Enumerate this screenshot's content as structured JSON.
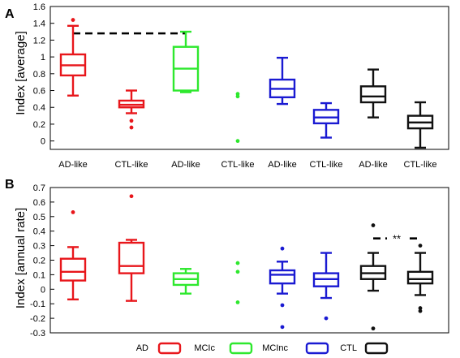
{
  "colors": {
    "AD": "#e8161b",
    "MCIc": "#2ee82e",
    "MCInc": "#1a1ad2",
    "CTL": "#111111"
  },
  "legend": {
    "items": [
      {
        "label": "AD",
        "group": "AD"
      },
      {
        "label": "MCIc",
        "group": "MCIc"
      },
      {
        "label": "MCInc",
        "group": "MCInc"
      },
      {
        "label": "CTL",
        "group": "CTL"
      }
    ]
  },
  "chart_data": [
    {
      "type": "box",
      "panel_label": "A",
      "ylabel": "Index [average]",
      "ylim": [
        -0.1,
        1.6
      ],
      "yticks": [
        0,
        0.2,
        0.4,
        0.6,
        0.8,
        1,
        1.2,
        1.4,
        1.6
      ],
      "ytick_labels": [
        "0",
        "0.2",
        "0.4",
        "0.6",
        "0.8",
        "1",
        "1.2",
        "1.4",
        "1.6"
      ],
      "categories": [
        "AD-like",
        "CTL-like",
        "AD-like",
        "CTL-like",
        "AD-like",
        "CTL-like",
        "AD-like",
        "CTL-like"
      ],
      "boxes": [
        {
          "group": "AD",
          "min": 0.54,
          "q1": 0.78,
          "median": 0.9,
          "q3": 1.03,
          "max": 1.37,
          "outliers": [
            1.44
          ]
        },
        {
          "group": "AD",
          "min": 0.33,
          "q1": 0.4,
          "median": 0.43,
          "q3": 0.48,
          "max": 0.6,
          "outliers": [
            0.24,
            0.16
          ]
        },
        {
          "group": "MCIc",
          "min": 0.58,
          "q1": 0.6,
          "median": 0.86,
          "q3": 1.12,
          "max": 1.3,
          "outliers": []
        },
        {
          "group": "MCIc",
          "min": null,
          "q1": null,
          "median": null,
          "q3": null,
          "max": null,
          "outliers": [
            0.56,
            0.53,
            0.0
          ]
        },
        {
          "group": "MCInc",
          "min": 0.44,
          "q1": 0.52,
          "median": 0.62,
          "q3": 0.73,
          "max": 0.99,
          "outliers": []
        },
        {
          "group": "MCInc",
          "min": 0.04,
          "q1": 0.21,
          "median": 0.28,
          "q3": 0.37,
          "max": 0.45,
          "outliers": []
        },
        {
          "group": "CTL",
          "min": 0.28,
          "q1": 0.46,
          "median": 0.53,
          "q3": 0.65,
          "max": 0.85,
          "outliers": []
        },
        {
          "group": "CTL",
          "min": -0.08,
          "q1": 0.15,
          "median": 0.22,
          "q3": 0.3,
          "max": 0.46,
          "outliers": []
        }
      ],
      "annotations": [
        {
          "type": "dashed-bracket",
          "from_box": 0,
          "to_box": 2,
          "y": 1.28,
          "text": ""
        }
      ]
    },
    {
      "type": "box",
      "panel_label": "B",
      "ylabel": "Index [annual rate]",
      "ylim": [
        -0.3,
        0.7
      ],
      "yticks": [
        -0.3,
        -0.2,
        -0.1,
        0,
        0.1,
        0.2,
        0.3,
        0.4,
        0.5,
        0.6,
        0.7
      ],
      "ytick_labels": [
        "-0.3",
        "-0.2",
        "-0.1",
        "0",
        "0.1",
        "0.2",
        "0.3",
        "0.4",
        "0.5",
        "0.6",
        "0.7"
      ],
      "categories": [
        "",
        "",
        "",
        "",
        "",
        "",
        "",
        ""
      ],
      "boxes": [
        {
          "group": "AD",
          "min": -0.07,
          "q1": 0.06,
          "median": 0.12,
          "q3": 0.21,
          "max": 0.29,
          "outliers": [
            0.53
          ]
        },
        {
          "group": "AD",
          "min": -0.08,
          "q1": 0.11,
          "median": 0.16,
          "q3": 0.32,
          "max": 0.34,
          "outliers": [
            0.64
          ]
        },
        {
          "group": "MCIc",
          "min": -0.03,
          "q1": 0.03,
          "median": 0.07,
          "q3": 0.11,
          "max": 0.14,
          "outliers": []
        },
        {
          "group": "MCIc",
          "min": null,
          "q1": null,
          "median": null,
          "q3": null,
          "max": null,
          "outliers": [
            0.18,
            0.12,
            -0.09
          ]
        },
        {
          "group": "MCInc",
          "min": -0.03,
          "q1": 0.04,
          "median": 0.1,
          "q3": 0.13,
          "max": 0.19,
          "outliers": [
            0.28,
            -0.11,
            -0.26
          ]
        },
        {
          "group": "MCInc",
          "min": -0.06,
          "q1": 0.02,
          "median": 0.07,
          "q3": 0.11,
          "max": 0.25,
          "outliers": [
            -0.2
          ]
        },
        {
          "group": "CTL",
          "min": -0.01,
          "q1": 0.07,
          "median": 0.11,
          "q3": 0.16,
          "max": 0.25,
          "outliers": [
            0.44,
            -0.27
          ]
        },
        {
          "group": "CTL",
          "min": -0.04,
          "q1": 0.04,
          "median": 0.07,
          "q3": 0.12,
          "max": 0.25,
          "outliers": [
            0.3,
            -0.13,
            -0.15
          ]
        }
      ],
      "annotations": [
        {
          "type": "dashed-bracket",
          "from_box": 6,
          "to_box": 7,
          "y": 0.35,
          "text": "**"
        }
      ]
    }
  ]
}
